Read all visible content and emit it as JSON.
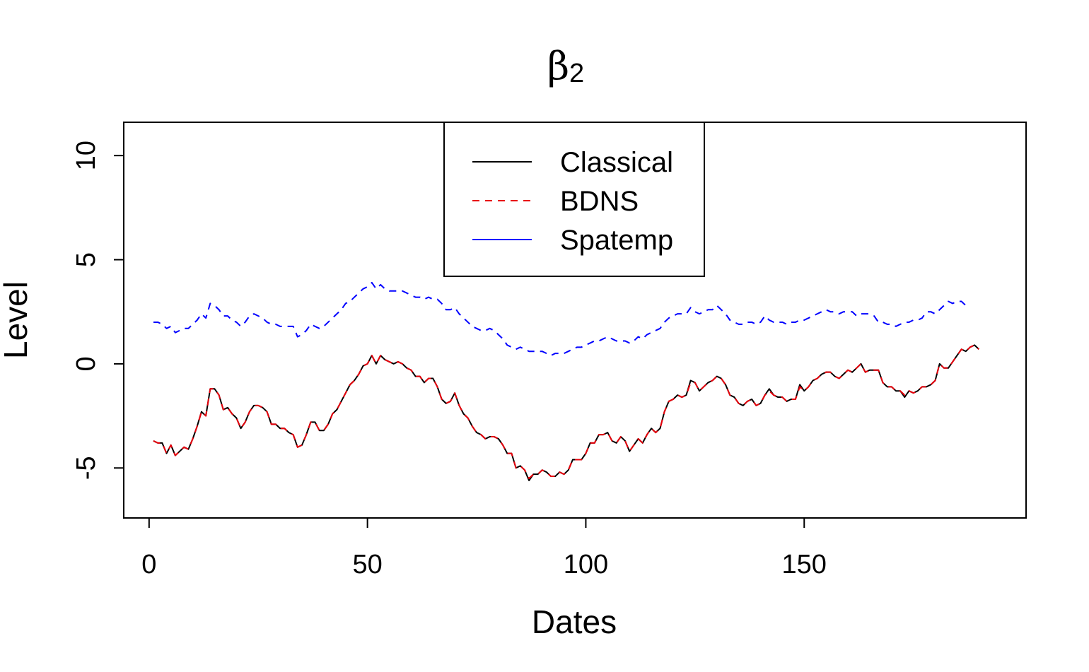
{
  "chart_data": {
    "type": "line",
    "title": "β",
    "title_subscript": "2",
    "xlabel": "Dates",
    "ylabel": "Level",
    "xlim": [
      -5.8,
      200.8
    ],
    "ylim": [
      -7.4,
      11.6
    ],
    "x_ticks": [
      0,
      50,
      100,
      150
    ],
    "x_tick_labels": [
      "0",
      "50",
      "100",
      "150"
    ],
    "y_ticks": [
      -5,
      0,
      5,
      10
    ],
    "y_tick_labels": [
      "-5",
      "0",
      "5",
      "10"
    ],
    "grid": false,
    "legend": "top-center",
    "series": [
      {
        "name": "Classical",
        "color": "#000000",
        "dash": "solid",
        "x0": 1,
        "values": [
          -3.7,
          -3.8,
          -3.8,
          -4.3,
          -3.9,
          -4.4,
          -4.2,
          -4.0,
          -4.1,
          -3.6,
          -3.0,
          -2.3,
          -2.5,
          -1.2,
          -1.2,
          -1.5,
          -2.2,
          -2.1,
          -2.4,
          -2.6,
          -3.1,
          -2.8,
          -2.3,
          -2.0,
          -2.0,
          -2.1,
          -2.3,
          -2.9,
          -2.9,
          -3.1,
          -3.1,
          -3.3,
          -3.4,
          -4.0,
          -3.9,
          -3.4,
          -2.8,
          -2.8,
          -3.2,
          -3.2,
          -2.9,
          -2.4,
          -2.2,
          -1.8,
          -1.4,
          -1.0,
          -0.8,
          -0.5,
          -0.1,
          0.0,
          0.4,
          0.0,
          0.4,
          0.2,
          0.1,
          0.0,
          0.1,
          0.0,
          -0.2,
          -0.3,
          -0.6,
          -0.6,
          -0.9,
          -0.7,
          -0.7,
          -1.1,
          -1.7,
          -1.9,
          -1.8,
          -1.4,
          -2.0,
          -2.4,
          -2.6,
          -3.0,
          -3.3,
          -3.4,
          -3.6,
          -3.5,
          -3.5,
          -3.6,
          -3.9,
          -4.3,
          -4.3,
          -5.0,
          -4.9,
          -5.1,
          -5.6,
          -5.3,
          -5.3,
          -5.1,
          -5.2,
          -5.4,
          -5.4,
          -5.2,
          -5.3,
          -5.1,
          -4.6,
          -4.6,
          -4.6,
          -4.3,
          -3.8,
          -3.8,
          -3.4,
          -3.4,
          -3.3,
          -3.7,
          -3.8,
          -3.5,
          -3.7,
          -4.2,
          -3.9,
          -3.6,
          -3.8,
          -3.4,
          -3.1,
          -3.3,
          -3.1,
          -2.3,
          -1.8,
          -1.7,
          -1.5,
          -1.6,
          -1.5,
          -0.8,
          -0.9,
          -1.3,
          -1.1,
          -0.9,
          -0.8,
          -0.6,
          -0.7,
          -1.0,
          -1.5,
          -1.6,
          -1.9,
          -2.0,
          -1.8,
          -1.7,
          -2.0,
          -1.9,
          -1.5,
          -1.2,
          -1.5,
          -1.6,
          -1.6,
          -1.8,
          -1.7,
          -1.7,
          -1.0,
          -1.3,
          -1.1,
          -0.8,
          -0.7,
          -0.5,
          -0.4,
          -0.4,
          -0.6,
          -0.7,
          -0.5,
          -0.3,
          -0.4,
          -0.2,
          0.0,
          -0.4,
          -0.3,
          -0.3,
          -0.3,
          -0.9,
          -1.1,
          -1.1,
          -1.3,
          -1.3,
          -1.6,
          -1.3,
          -1.4,
          -1.3,
          -1.1,
          -1.1,
          -1.0,
          -0.8,
          0.0,
          -0.2,
          -0.2,
          0.1,
          0.4,
          0.7,
          0.6,
          0.8,
          0.9,
          0.7
        ]
      },
      {
        "name": "BDNS",
        "color": "#e8000b",
        "dash": "dashed",
        "x0": 1,
        "values": [
          -3.7,
          -3.8,
          -3.8,
          -4.3,
          -3.9,
          -4.4,
          -4.2,
          -4.0,
          -4.1,
          -3.6,
          -3.0,
          -2.3,
          -2.5,
          -1.2,
          -1.2,
          -1.5,
          -2.2,
          -2.1,
          -2.4,
          -2.6,
          -3.1,
          -2.8,
          -2.3,
          -2.0,
          -2.0,
          -2.1,
          -2.3,
          -2.9,
          -2.9,
          -3.1,
          -3.1,
          -3.3,
          -3.4,
          -4.0,
          -3.9,
          -3.4,
          -2.8,
          -2.8,
          -3.2,
          -3.2,
          -2.9,
          -2.4,
          -2.2,
          -1.8,
          -1.4,
          -1.0,
          -0.8,
          -0.5,
          -0.1,
          0.0,
          0.4,
          0.0,
          0.4,
          0.2,
          0.1,
          0.0,
          0.1,
          0.0,
          -0.2,
          -0.3,
          -0.6,
          -0.6,
          -0.9,
          -0.7,
          -0.7,
          -1.1,
          -1.7,
          -1.9,
          -1.8,
          -1.4,
          -2.0,
          -2.4,
          -2.6,
          -3.0,
          -3.3,
          -3.4,
          -3.6,
          -3.5,
          -3.5,
          -3.6,
          -3.9,
          -4.3,
          -4.3,
          -5.0,
          -4.9,
          -5.1,
          -5.5,
          -5.3,
          -5.3,
          -5.1,
          -5.2,
          -5.4,
          -5.4,
          -5.2,
          -5.3,
          -5.1,
          -4.6,
          -4.6,
          -4.6,
          -4.3,
          -3.8,
          -3.8,
          -3.4,
          -3.4,
          -3.3,
          -3.7,
          -3.8,
          -3.5,
          -3.7,
          -4.2,
          -3.9,
          -3.6,
          -3.8,
          -3.4,
          -3.1,
          -3.3,
          -3.1,
          -2.3,
          -1.8,
          -1.7,
          -1.5,
          -1.6,
          -1.5,
          -0.9,
          -0.9,
          -1.3,
          -1.1,
          -0.9,
          -0.8,
          -0.6,
          -0.7,
          -1.0,
          -1.5,
          -1.6,
          -1.9,
          -2.0,
          -1.8,
          -1.7,
          -2.0,
          -1.9,
          -1.5,
          -1.3,
          -1.5,
          -1.6,
          -1.6,
          -1.8,
          -1.7,
          -1.7,
          -1.1,
          -1.3,
          -1.1,
          -0.8,
          -0.7,
          -0.5,
          -0.4,
          -0.4,
          -0.6,
          -0.7,
          -0.5,
          -0.3,
          -0.4,
          -0.2,
          0.0,
          -0.4,
          -0.3,
          -0.3,
          -0.3,
          -0.9,
          -1.1,
          -1.1,
          -1.3,
          -1.3,
          -1.5,
          -1.3,
          -1.4,
          -1.3,
          -1.1,
          -1.1,
          -1.0,
          -0.8,
          0.0,
          -0.2,
          -0.2,
          0.1,
          0.4,
          0.7,
          0.6,
          0.8,
          0.9,
          0.7
        ]
      },
      {
        "name": "Spatemp",
        "color": "#0000ff",
        "dash": "dashed",
        "x0": 1,
        "values": [
          2.0,
          2.0,
          1.9,
          1.7,
          1.8,
          1.5,
          1.6,
          1.7,
          1.7,
          1.9,
          2.1,
          2.4,
          2.2,
          2.9,
          2.8,
          2.6,
          2.3,
          2.3,
          2.1,
          2.0,
          1.8,
          2.0,
          2.3,
          2.4,
          2.3,
          2.2,
          2.0,
          1.9,
          1.9,
          1.8,
          1.8,
          1.8,
          1.8,
          1.3,
          1.4,
          1.6,
          1.9,
          1.8,
          1.7,
          1.8,
          2.0,
          2.2,
          2.4,
          2.6,
          2.9,
          3.0,
          3.2,
          3.4,
          3.6,
          3.7,
          3.9,
          3.6,
          3.8,
          3.6,
          3.5,
          3.5,
          3.5,
          3.5,
          3.4,
          3.3,
          3.2,
          3.2,
          3.1,
          3.2,
          3.1,
          3.1,
          2.9,
          2.6,
          2.6,
          2.7,
          2.4,
          2.2,
          2.0,
          1.8,
          1.7,
          1.6,
          1.6,
          1.7,
          1.6,
          1.4,
          1.2,
          0.9,
          0.8,
          0.7,
          0.8,
          0.7,
          0.6,
          0.6,
          0.6,
          0.6,
          0.5,
          0.4,
          0.5,
          0.5,
          0.5,
          0.6,
          0.7,
          0.8,
          0.8,
          0.9,
          1.0,
          1.1,
          1.1,
          1.2,
          1.3,
          1.2,
          1.1,
          1.1,
          1.1,
          1.0,
          1.1,
          1.3,
          1.2,
          1.4,
          1.5,
          1.6,
          1.7,
          2.0,
          2.2,
          2.3,
          2.4,
          2.4,
          2.4,
          2.7,
          2.5,
          2.4,
          2.5,
          2.6,
          2.6,
          2.8,
          2.6,
          2.4,
          2.1,
          2.0,
          1.9,
          1.9,
          2.0,
          2.0,
          1.9,
          2.0,
          2.3,
          2.1,
          2.0,
          2.0,
          2.0,
          1.9,
          2.0,
          2.0,
          2.1,
          2.1,
          2.2,
          2.3,
          2.4,
          2.5,
          2.6,
          2.5,
          2.5,
          2.4,
          2.5,
          2.5,
          2.5,
          2.3,
          2.4,
          2.4,
          2.4,
          2.3,
          2.0,
          2.0,
          1.9,
          1.9,
          1.8,
          1.9,
          2.0,
          2.0,
          2.1,
          2.1,
          2.2,
          2.5,
          2.5,
          2.4,
          2.6,
          2.8,
          3.0,
          2.9,
          3.0,
          3.0,
          2.8
        ]
      }
    ]
  }
}
